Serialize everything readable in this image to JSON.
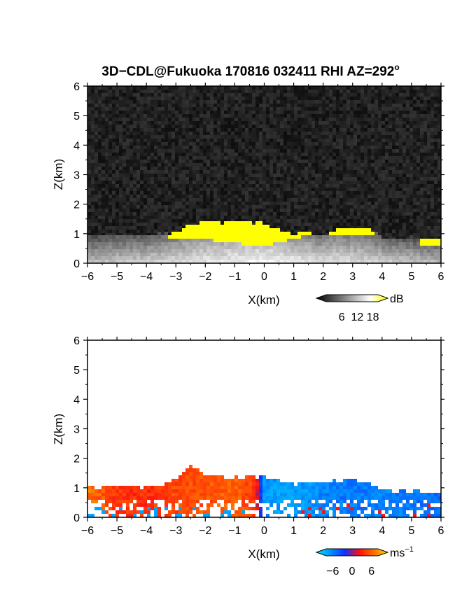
{
  "title": {
    "main": "3D−CDL@Fukuoka 170816 032411 RHI AZ=292",
    "degree": "o"
  },
  "chart_data": [
    {
      "id": "snr-panel",
      "type": "heatmap",
      "xlabel": "X(km)",
      "ylabel": "Z(km)",
      "xlim": [
        -6,
        6
      ],
      "ylim": [
        0,
        6
      ],
      "x_ticks": [
        "−6",
        "−5",
        "−4",
        "−3",
        "−2",
        "−1",
        "0",
        "1",
        "2",
        "3",
        "4",
        "5",
        "6"
      ],
      "y_ticks": [
        "0",
        "1",
        "2",
        "3",
        "4",
        "5",
        "6"
      ],
      "variable": "signal strength",
      "colorbar": {
        "unit": "dB",
        "tick_labels": [
          "6",
          "12",
          "18"
        ],
        "tick_values": [
          6,
          12,
          18
        ],
        "range": [
          0,
          20
        ],
        "stops": [
          "#000000",
          "#555555",
          "#aaaaaa",
          "#ffffff",
          "#ffff00"
        ]
      },
      "background_color": "#1c1c1c",
      "highlight_color": "#ffff00",
      "layer_top": [
        [
          -6.0,
          0.95
        ],
        [
          -5.5,
          0.98
        ],
        [
          -5.0,
          0.98
        ],
        [
          -4.5,
          0.96
        ],
        [
          -4.0,
          0.98
        ],
        [
          -3.5,
          0.98
        ],
        [
          -3.0,
          1.05
        ],
        [
          -2.5,
          1.3
        ],
        [
          -2.0,
          1.45
        ],
        [
          -1.5,
          1.35
        ],
        [
          -1.0,
          1.45
        ],
        [
          -0.5,
          1.42
        ],
        [
          0.0,
          1.35
        ],
        [
          0.5,
          1.15
        ],
        [
          1.0,
          1.0
        ],
        [
          1.5,
          1.05
        ],
        [
          2.0,
          0.95
        ],
        [
          2.5,
          1.15
        ],
        [
          3.0,
          1.15
        ],
        [
          3.5,
          1.15
        ],
        [
          4.0,
          0.9
        ],
        [
          4.5,
          0.85
        ],
        [
          5.0,
          0.88
        ],
        [
          5.5,
          0.82
        ],
        [
          6.0,
          0.78
        ]
      ],
      "bright_region": [
        [
          -3.0,
          1.05,
          0.85
        ],
        [
          -2.5,
          1.3,
          0.85
        ],
        [
          -2.0,
          1.45,
          0.8
        ],
        [
          -1.5,
          1.35,
          0.75
        ],
        [
          -1.0,
          1.45,
          0.7
        ],
        [
          -0.5,
          1.42,
          0.6
        ],
        [
          0.0,
          1.35,
          0.6
        ],
        [
          0.5,
          1.15,
          0.7
        ],
        [
          1.0,
          1.0,
          0.85
        ],
        [
          1.5,
          1.05,
          0.9
        ],
        [
          2.5,
          1.15,
          0.9
        ],
        [
          3.0,
          1.15,
          0.9
        ],
        [
          3.5,
          1.15,
          0.95
        ],
        [
          5.5,
          0.82,
          0.65
        ],
        [
          6.0,
          0.78,
          0.65
        ]
      ]
    },
    {
      "id": "velocity-panel",
      "type": "heatmap",
      "xlabel": "X(km)",
      "ylabel": "Z(km)",
      "xlim": [
        -6,
        6
      ],
      "ylim": [
        0,
        6
      ],
      "x_ticks": [
        "−6",
        "−5",
        "−4",
        "−3",
        "−2",
        "−1",
        "0",
        "1",
        "2",
        "3",
        "4",
        "5",
        "6"
      ],
      "y_ticks": [
        "0",
        "1",
        "2",
        "3",
        "4",
        "5",
        "6"
      ],
      "variable": "radial velocity",
      "colorbar": {
        "unit": "ms",
        "unit_exponent": "−1",
        "tick_labels": [
          "−6",
          "0",
          "6"
        ],
        "tick_values": [
          -6,
          0,
          6
        ],
        "range": [
          -8,
          8
        ],
        "stops": [
          "#00e5ff",
          "#0090ff",
          "#1030ff",
          "#ff1010",
          "#ff6a00",
          "#ffe000"
        ]
      },
      "layer_top": [
        [
          -6.0,
          1.08
        ],
        [
          -5.5,
          1.0
        ],
        [
          -5.0,
          1.08
        ],
        [
          -4.5,
          1.05
        ],
        [
          -4.0,
          1.05
        ],
        [
          -3.5,
          1.1
        ],
        [
          -3.0,
          1.3
        ],
        [
          -2.5,
          1.75
        ],
        [
          -2.0,
          1.45
        ],
        [
          -1.5,
          1.4
        ],
        [
          -1.0,
          1.38
        ],
        [
          -0.5,
          1.38
        ],
        [
          0.0,
          1.38
        ],
        [
          0.5,
          1.25
        ],
        [
          1.0,
          1.1
        ],
        [
          1.5,
          1.18
        ],
        [
          2.0,
          1.18
        ],
        [
          2.5,
          1.25
        ],
        [
          3.0,
          1.28
        ],
        [
          3.5,
          1.22
        ],
        [
          4.0,
          0.95
        ],
        [
          4.5,
          0.9
        ],
        [
          5.0,
          0.88
        ],
        [
          5.5,
          0.82
        ],
        [
          6.0,
          0.78
        ]
      ],
      "velocity_at_x": [
        [
          -6.0,
          5.0
        ],
        [
          -5.0,
          3.0
        ],
        [
          -4.0,
          2.5
        ],
        [
          -3.0,
          3.5
        ],
        [
          -2.0,
          4.0
        ],
        [
          -1.0,
          4.5
        ],
        [
          -0.3,
          3.0
        ],
        [
          0.0,
          -5.0
        ],
        [
          1.0,
          -5.5
        ],
        [
          2.0,
          -4.5
        ],
        [
          3.0,
          -4.0
        ],
        [
          4.0,
          -4.5
        ],
        [
          5.0,
          -4.0
        ],
        [
          6.0,
          -3.5
        ]
      ]
    }
  ]
}
